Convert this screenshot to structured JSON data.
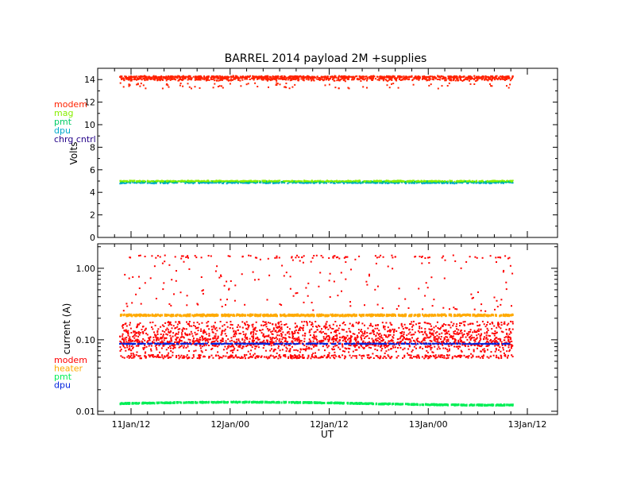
{
  "chart_data": [
    {
      "type": "scatter",
      "title": "BARREL 2014 payload 2M +supplies",
      "ylabel": "Volts",
      "ylim": [
        0,
        15
      ],
      "yticks": [
        0,
        2,
        4,
        6,
        8,
        10,
        12,
        14
      ],
      "scale": "linear",
      "legend_placement": "left",
      "series": [
        {
          "name": "modem",
          "color": "#ff2200",
          "y_center": 14.1,
          "y_spread": 0.25,
          "outliers_low": 13.2
        },
        {
          "name": "mag",
          "color": "#88ee00",
          "y_center": 5.0,
          "y_spread": 0.06
        },
        {
          "name": "pmt",
          "color": "#00cc66",
          "y_center": 4.95,
          "y_spread": 0.06
        },
        {
          "name": "dpu",
          "color": "#00aacc",
          "y_center": 4.85,
          "y_spread": 0.08
        },
        {
          "name": "chrg cntrl",
          "color": "#220088",
          "y_center": null,
          "y_spread": null
        }
      ]
    },
    {
      "type": "scatter",
      "ylabel": "current (A)",
      "ylim": [
        0.009,
        2.2
      ],
      "yticks": [
        0.01,
        0.1,
        1.0
      ],
      "ytick_labels": [
        "0.01",
        "0.10",
        "1.00"
      ],
      "scale": "log",
      "xlabel": "UT",
      "xticks": [
        "11Jan/12",
        "12Jan/00",
        "12Jan/12",
        "13Jan/00",
        "13Jan/12"
      ],
      "legend_placement": "left",
      "series": [
        {
          "name": "modem",
          "color": "#ff0000",
          "y_center": 0.095,
          "y_range": [
            0.05,
            1.5
          ]
        },
        {
          "name": "heater",
          "color": "#ffaa00",
          "y_center": 0.22,
          "y_spread": 0.01
        },
        {
          "name": "pmt",
          "color": "#00ee55",
          "y_center": 0.0128,
          "y_spread": 0.0006
        },
        {
          "name": "dpu",
          "color": "#0022dd",
          "y_center": 0.088,
          "y_spread": 0.002
        }
      ]
    }
  ]
}
